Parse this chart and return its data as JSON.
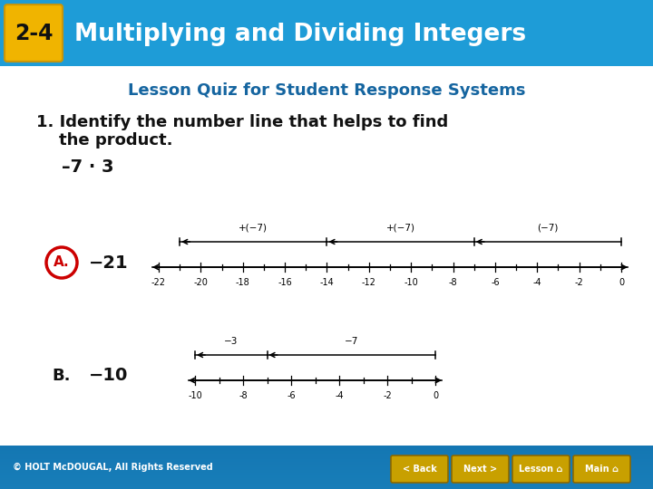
{
  "title_badge": "2-4",
  "title_text": "Multiplying and Dividing Integers",
  "subtitle": "Lesson Quiz for Student Response Systems",
  "question_line1": "1. Identify the number line that helps to find",
  "question_line2": "    the product.",
  "expression": "–7 · 3",
  "answer_a_value": "−21",
  "answer_b_value": "−10",
  "header_bg": "#1e9cd7",
  "header_text_color": "#ffffff",
  "badge_bg": "#f0b400",
  "badge_border": "#c8960a",
  "subtitle_color": "#1565a0",
  "body_bg": "#ffffff",
  "footer_bg": "#1e9cd7",
  "footer_text": "© HOLT McDOUGAL, All Rights Reserved",
  "btn_labels": [
    "< Back",
    "Next >",
    "Lesson",
    "Main"
  ],
  "btn_bg": "#c8a000",
  "btn_border": "#8B6800",
  "nl_a_ticks": [
    -22,
    -20,
    -18,
    -16,
    -14,
    -12,
    -10,
    -8,
    -6,
    -4,
    -2,
    0
  ],
  "nl_b_ticks": [
    -10,
    -8,
    -6,
    -4,
    -2,
    0
  ],
  "seg_a": [
    [
      -21,
      -14,
      "+(−7)"
    ],
    [
      -14,
      -7,
      "+(−7)"
    ],
    [
      -7,
      0,
      "(−7)"
    ]
  ],
  "seg_b": [
    [
      -10,
      -7,
      "−3"
    ],
    [
      -7,
      0,
      "−7"
    ]
  ],
  "circle_color": "#cc0000"
}
